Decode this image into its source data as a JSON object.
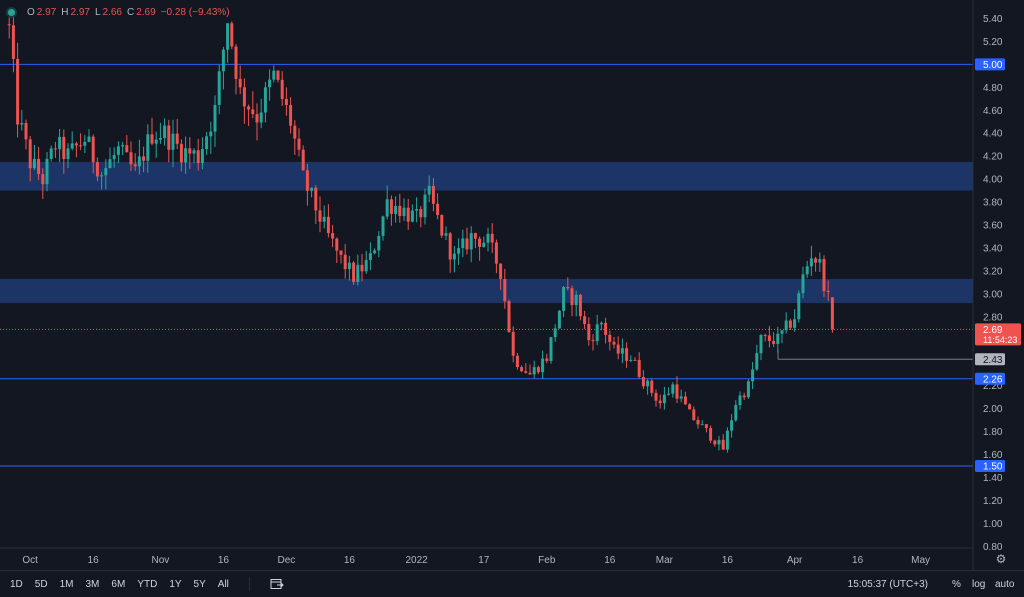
{
  "legend": {
    "open_key": "O",
    "open": "2.97",
    "high_key": "H",
    "high": "2.97",
    "low_key": "L",
    "low": "2.66",
    "close_key": "C",
    "close": "2.69",
    "change": "−0.28 (−9.43%)"
  },
  "colors": {
    "background": "#131722",
    "up": "#26a69a",
    "down": "#ef5350",
    "zone": "#1e3a72",
    "level_line": "#2962ff",
    "grid": "#1e222d"
  },
  "price_axis": {
    "ticks": [
      "5.40",
      "5.20",
      "4.80",
      "4.60",
      "4.40",
      "4.20",
      "4.00",
      "3.80",
      "3.60",
      "3.40",
      "3.20",
      "3.00",
      "2.80",
      "2.20",
      "2.00",
      "1.80",
      "1.60",
      "1.40",
      "1.20",
      "1.00",
      "0.80"
    ],
    "tick_values": [
      5.4,
      5.2,
      4.8,
      4.6,
      4.4,
      4.2,
      4.0,
      3.8,
      3.6,
      3.4,
      3.2,
      3.0,
      2.8,
      2.2,
      2.0,
      1.8,
      1.6,
      1.4,
      1.2,
      1.0,
      0.8
    ]
  },
  "time_axis": {
    "labels": [
      "Oct",
      "16",
      "Nov",
      "16",
      "Dec",
      "16",
      "2022",
      "17",
      "Feb",
      "16",
      "Mar",
      "16",
      "Apr",
      "16",
      "May"
    ],
    "dates": [
      "2021-10-01",
      "2021-10-16",
      "2021-11-01",
      "2021-11-16",
      "2021-12-01",
      "2021-12-16",
      "2022-01-01",
      "2022-01-17",
      "2022-02-01",
      "2022-02-16",
      "2022-03-01",
      "2022-03-16",
      "2022-04-01",
      "2022-04-16",
      "2022-05-01"
    ]
  },
  "price_labels": {
    "level_500": "5.00",
    "last_price": "2.69",
    "countdown": "11:54:23",
    "level_243": "2.43",
    "level_226": "2.26",
    "level_150": "1.50"
  },
  "range_buttons": [
    "1D",
    "5D",
    "1M",
    "3M",
    "6M",
    "YTD",
    "1Y",
    "5Y",
    "All"
  ],
  "toolbar": {
    "clock": "15:05:37 (UTC+3)",
    "percent": "%",
    "log": "log",
    "auto": "auto",
    "goto_icon": "calendar-goto-icon",
    "settings_icon": "gear-icon"
  },
  "chart_data": {
    "type": "candlestick",
    "ylim": [
      0.8,
      5.5
    ],
    "xlim": [
      "2021-09-25",
      "2022-05-08"
    ],
    "grid": false,
    "zones": [
      {
        "from": 3.9,
        "to": 4.15
      },
      {
        "from": 2.92,
        "to": 3.13
      }
    ],
    "levels": [
      5.0,
      2.26,
      1.5
    ],
    "last_price": 2.69,
    "marked_level": 2.43,
    "ohlc_keypoints": [
      [
        "2021-09-26",
        5.3
      ],
      [
        "2021-09-28",
        4.55
      ],
      [
        "2021-10-01",
        4.15
      ],
      [
        "2021-10-04",
        4.0
      ],
      [
        "2021-10-07",
        4.3
      ],
      [
        "2021-10-10",
        4.2
      ],
      [
        "2021-10-14",
        4.35
      ],
      [
        "2021-10-18",
        4.05
      ],
      [
        "2021-10-22",
        4.25
      ],
      [
        "2021-10-26",
        4.05
      ],
      [
        "2021-10-30",
        4.4
      ],
      [
        "2021-11-02",
        4.4
      ],
      [
        "2021-11-06",
        4.25
      ],
      [
        "2021-11-10",
        4.2
      ],
      [
        "2021-11-14",
        4.6
      ],
      [
        "2021-11-17",
        5.4
      ],
      [
        "2021-11-20",
        4.75
      ],
      [
        "2021-11-24",
        4.55
      ],
      [
        "2021-11-28",
        4.9
      ],
      [
        "2021-12-02",
        4.5
      ],
      [
        "2021-12-05",
        4.0
      ],
      [
        "2021-12-08",
        3.75
      ],
      [
        "2021-12-11",
        3.5
      ],
      [
        "2021-12-14",
        3.3
      ],
      [
        "2021-12-17",
        3.15
      ],
      [
        "2021-12-21",
        3.3
      ],
      [
        "2021-12-25",
        3.8
      ],
      [
        "2021-12-28",
        3.75
      ],
      [
        "2022-01-01",
        3.65
      ],
      [
        "2022-01-04",
        3.85
      ],
      [
        "2022-01-07",
        3.55
      ],
      [
        "2022-01-10",
        3.3
      ],
      [
        "2022-01-14",
        3.5
      ],
      [
        "2022-01-18",
        3.45
      ],
      [
        "2022-01-21",
        3.2
      ],
      [
        "2022-01-24",
        2.45
      ],
      [
        "2022-01-28",
        2.3
      ],
      [
        "2022-02-01",
        2.45
      ],
      [
        "2022-02-05",
        3.0
      ],
      [
        "2022-02-08",
        2.95
      ],
      [
        "2022-02-11",
        2.6
      ],
      [
        "2022-02-14",
        2.75
      ],
      [
        "2022-02-17",
        2.5
      ],
      [
        "2022-02-21",
        2.45
      ],
      [
        "2022-02-24",
        2.25
      ],
      [
        "2022-02-28",
        2.05
      ],
      [
        "2022-03-03",
        2.2
      ],
      [
        "2022-03-07",
        1.95
      ],
      [
        "2022-03-11",
        1.8
      ],
      [
        "2022-03-15",
        1.65
      ],
      [
        "2022-03-18",
        2.05
      ],
      [
        "2022-03-21",
        2.2
      ],
      [
        "2022-03-24",
        2.6
      ],
      [
        "2022-03-28",
        2.6
      ],
      [
        "2022-04-01",
        2.8
      ],
      [
        "2022-04-03",
        3.15
      ],
      [
        "2022-04-05",
        3.35
      ],
      [
        "2022-04-07",
        3.25
      ],
      [
        "2022-04-09",
        2.95
      ],
      [
        "2022-04-10",
        2.69
      ]
    ]
  }
}
